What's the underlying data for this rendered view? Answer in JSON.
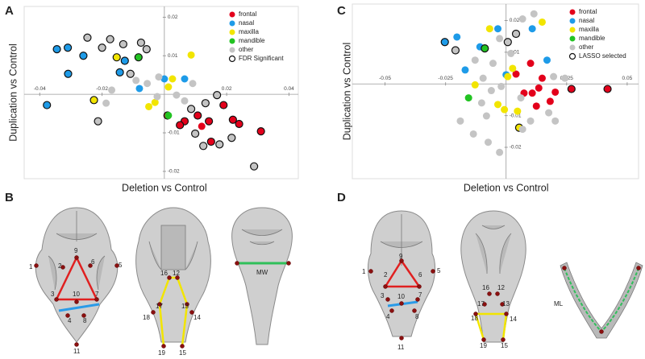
{
  "panel_letters": [
    "A",
    "B",
    "C",
    "D"
  ],
  "chart_data": [
    {
      "type": "scatter",
      "xlabel": "Deletion vs Control",
      "ylabel": "Duplication vs Control",
      "xlim": [
        -0.045,
        0.043
      ],
      "ylim": [
        -0.0219,
        0.0228
      ],
      "xticks": [
        -0.04,
        -0.02,
        0.02,
        0.04
      ],
      "yticks": [
        0.02,
        0.01,
        -0.01,
        -0.02
      ],
      "legend": "upper right",
      "outline_label": "FDR Significant",
      "series": [
        {
          "name": "frontal",
          "color": "#e3001b",
          "x": [
            0.001,
            0.0065,
            0.005,
            0.0107,
            0.0143,
            0.019,
            0.022,
            0.024,
            0.031,
            0.015,
            0.012
          ],
          "values": [
            -0.0055,
            -0.007,
            -0.008,
            -0.0055,
            -0.007,
            -0.0028,
            -0.0066,
            -0.0077,
            -0.0096,
            -0.0123,
            -0.0083
          ],
          "outlined": [
            true,
            true,
            true,
            true,
            true,
            true,
            true,
            true,
            true,
            true,
            false
          ]
        },
        {
          "name": "nasal",
          "color": "#1e9be8",
          "x": [
            -0.0345,
            -0.031,
            -0.0309,
            -0.0377,
            -0.026,
            -0.0127,
            -0.0143,
            -0.008,
            0,
            0.0065
          ],
          "values": [
            0.0117,
            0.0121,
            0.0053,
            -0.0028,
            0.01,
            0.0087,
            0.0057,
            0.0015,
            0.004,
            0.004
          ],
          "outlined": [
            true,
            true,
            true,
            true,
            true,
            true,
            true,
            false,
            false,
            false
          ]
        },
        {
          "name": "maxilla",
          "color": "#f2e500",
          "x": [
            -0.0153,
            -0.0226,
            -0.005,
            -0.003,
            0.0026,
            0.0086,
            0.0013
          ],
          "values": [
            0.0096,
            -0.0015,
            -0.0032,
            -0.0021,
            0.004,
            0.0102,
            0.0019
          ],
          "outlined": [
            true,
            true,
            false,
            false,
            false,
            false,
            false
          ]
        },
        {
          "name": "mandible",
          "color": "#22c322",
          "x": [
            -0.0083,
            0.0013
          ],
          "values": [
            0.0096,
            -0.0055
          ],
          "outlined": [
            true,
            false
          ]
        },
        {
          "name": "other",
          "color": "#c4c4c4",
          "x": [
            -0.0247,
            -0.02,
            -0.0174,
            -0.0132,
            -0.0075,
            -0.0057,
            -0.0109,
            -0.0091,
            -0.0169,
            -0.0213,
            -0.0055,
            -0.0023,
            0.0039,
            0.0065,
            0.0091,
            0.0132,
            0.0169,
            0.0086,
            0.0099,
            0.0125,
            0.0177,
            0.0216,
            0.0288,
            -0.0018,
            -0.0187
          ],
          "values": [
            0.0147,
            0.0121,
            0.0143,
            0.013,
            0.0134,
            0.0117,
            0.0053,
            0.0036,
            0.0011,
            -0.007,
            0.0028,
            -0.0006,
            -0.0002,
            -0.0017,
            0.0028,
            -0.0023,
            -0.0002,
            -0.0038,
            -0.0102,
            -0.0134,
            -0.013,
            -0.0113,
            -0.0187,
            0.0045,
            -0.0023
          ],
          "outlined": [
            true,
            true,
            true,
            true,
            true,
            true,
            true,
            false,
            false,
            true,
            false,
            false,
            false,
            false,
            false,
            true,
            true,
            true,
            true,
            true,
            true,
            true,
            true,
            false,
            false
          ]
        }
      ]
    },
    {
      "type": "scatter",
      "xlabel": "Deletion vs Control",
      "ylabel": "Duplication vs Control",
      "xlim": [
        -0.0635,
        0.0547
      ],
      "ylim": [
        -0.0299,
        0.0252
      ],
      "xticks": [
        -0.05,
        -0.025,
        0.025,
        0.05
      ],
      "yticks": [
        0.02,
        0.01,
        -0.01,
        -0.02
      ],
      "legend": "upper right",
      "outline_label": "LASSO selected",
      "series": [
        {
          "name": "frontal",
          "color": "#e3001b",
          "x": [
            0.0108,
            0.0135,
            0.0074,
            0.0203,
            0.027,
            0.0419,
            0.0182,
            0.0125,
            0.0101,
            0.0041,
            0.0149
          ],
          "values": [
            -0.0029,
            -0.0013,
            -0.0029,
            -0.0026,
            -0.0016,
            -0.0016,
            -0.0055,
            -0.007,
            0.0065,
            0.0031,
            0.0018
          ],
          "outlined": [
            false,
            false,
            false,
            false,
            true,
            true,
            false,
            false,
            false,
            false,
            false
          ]
        },
        {
          "name": "nasal",
          "color": "#1e9be8",
          "x": [
            -0.0253,
            -0.0203,
            -0.0169,
            -0.0108,
            -0.0034,
            0.0108,
            0.0169,
            0
          ],
          "values": [
            0.0132,
            0.0148,
            0.0044,
            0.0117,
            0.0174,
            0.0174,
            0.0075,
            0.0029
          ],
          "outlined": [
            true,
            false,
            false,
            false,
            false,
            false,
            false,
            false
          ]
        },
        {
          "name": "maxilla",
          "color": "#f2e500",
          "x": [
            -0.0128,
            -0.0068,
            0.0007,
            0.0149,
            -0.0034,
            -0.0007,
            0.0047,
            0.0027,
            0.0054
          ],
          "values": [
            -0.0003,
            0.0174,
            0.0023,
            0.0195,
            -0.0065,
            -0.0081,
            -0.0086,
            0.0049,
            -0.0138
          ],
          "outlined": [
            false,
            false,
            false,
            false,
            false,
            false,
            false,
            false,
            true
          ]
        },
        {
          "name": "mandible",
          "color": "#22c322",
          "x": [
            -0.0088,
            -0.0155
          ],
          "values": [
            0.0112,
            -0.0044
          ],
          "outlined": [
            true,
            false
          ]
        },
        {
          "name": "other",
          "color": "#c4c4c4",
          "x": [
            -0.0209,
            -0.0128,
            -0.0027,
            0.0007,
            0.0041,
            0.0068,
            0.0115,
            -0.0054,
            -0.0095,
            -0.0061,
            -0.0101,
            -0.0081,
            -0.0189,
            -0.0135,
            -0.0074,
            -0.0027,
            0.0068,
            0.0101,
            0.0176,
            0.0203,
            0.0196,
            0.0243,
            -0.002,
            0.0061,
            0.002
          ],
          "values": [
            0.0106,
            0.0075,
            0.0143,
            0.0132,
            0.0158,
            0.0205,
            0.0221,
            0.0065,
            0.0018,
            -0.0021,
            -0.006,
            -0.0101,
            -0.0117,
            -0.0158,
            -0.0184,
            -0.0216,
            -0.0143,
            -0.0117,
            -0.0091,
            -0.0117,
            0.0023,
            0.0018,
            -0.0008,
            -0.0044,
            0.0096
          ],
          "outlined": [
            true,
            false,
            false,
            true,
            true,
            false,
            false,
            false,
            false,
            false,
            false,
            false,
            false,
            false,
            false,
            false,
            false,
            false,
            false,
            false,
            false,
            false,
            false,
            false,
            false
          ]
        }
      ]
    }
  ],
  "panel_b": {
    "landmarks": [
      "1",
      "2",
      "9",
      "6",
      "5",
      "3",
      "10",
      "7",
      "4",
      "8",
      "11",
      "16",
      "12",
      "17",
      "13",
      "18",
      "14",
      "19",
      "15"
    ],
    "measure": "MW"
  },
  "panel_d": {
    "landmarks": [
      "1",
      "2",
      "9",
      "6",
      "5",
      "3",
      "10",
      "7",
      "4",
      "8",
      "11",
      "16",
      "12",
      "17",
      "13",
      "18",
      "14",
      "19",
      "15"
    ],
    "measure": "ML"
  }
}
